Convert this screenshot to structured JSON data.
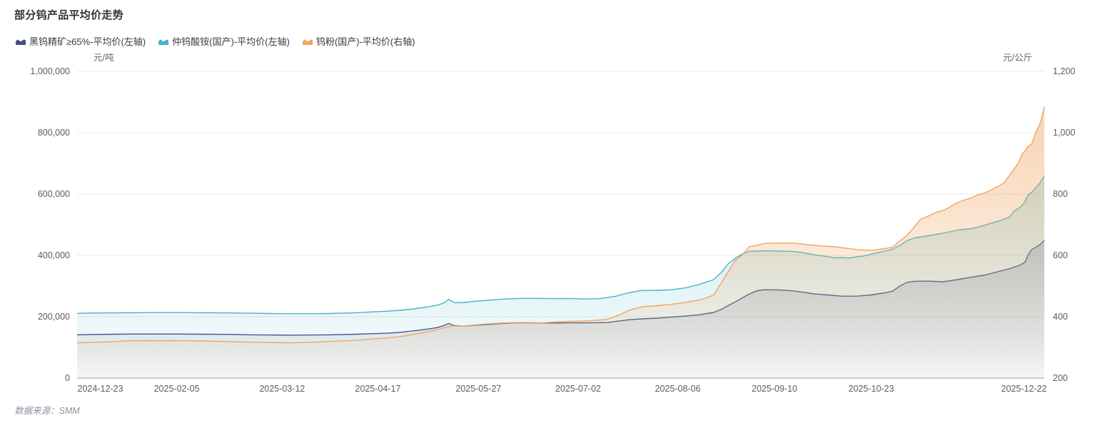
{
  "title": "部分钨产品平均价走势",
  "source": "数据来源：SMM",
  "axes": {
    "left": {
      "unit": "元/吨"
    },
    "right": {
      "unit": "元/公斤"
    }
  },
  "chart_data": {
    "type": "area",
    "title": "部分钨产品平均价走势",
    "grid": true,
    "legend_position": "top-left",
    "colors": {
      "background": "#ffffff",
      "gridline": "#e8e8e8",
      "axis_line": "#9b9b9b",
      "tick_text": "#5c5c5c"
    },
    "x_axis": {
      "note": "daily series from 2024-12-23 to 2025-12-22; point x stored as fraction of plot width",
      "tick_labels": [
        "2024-12-23",
        "2025-02-05",
        "2025-03-12",
        "2025-04-17",
        "2025-05-27",
        "2025-07-02",
        "2025-08-06",
        "2025-09-10",
        "2025-10-23",
        "2025-12-22"
      ],
      "tick_positions": [
        0.024,
        0.103,
        0.212,
        0.311,
        0.415,
        0.518,
        0.621,
        0.721,
        0.821,
        0.979
      ]
    },
    "y_left": {
      "label": "元/吨",
      "range": [
        0,
        1000000
      ],
      "ticks": [
        0,
        200000,
        400000,
        600000,
        800000,
        1000000
      ],
      "tick_labels": [
        "0",
        "200,000",
        "400,000",
        "600,000",
        "800,000",
        "1,000,000"
      ]
    },
    "y_right": {
      "label": "元/公斤",
      "range": [
        200,
        1200
      ],
      "ticks": [
        200,
        400,
        600,
        800,
        1000,
        1200
      ],
      "tick_labels": [
        "200",
        "400",
        "600",
        "800",
        "1,000",
        "1,200"
      ]
    },
    "series": [
      {
        "name": "黑钨精矿≥65%-平均价(左轴)",
        "axis": "left",
        "color": "#43517f",
        "fill_opacity_top": 0.26,
        "fill_opacity_bottom": 0.02,
        "points": [
          [
            0.0,
            141000
          ],
          [
            0.015,
            142000
          ],
          [
            0.04,
            143000
          ],
          [
            0.055,
            143500
          ],
          [
            0.08,
            143500
          ],
          [
            0.105,
            143500
          ],
          [
            0.13,
            143000
          ],
          [
            0.155,
            142500
          ],
          [
            0.18,
            141000
          ],
          [
            0.2,
            140500
          ],
          [
            0.22,
            140000
          ],
          [
            0.245,
            140500
          ],
          [
            0.26,
            141000
          ],
          [
            0.289,
            143000
          ],
          [
            0.319,
            146000
          ],
          [
            0.334,
            149000
          ],
          [
            0.348,
            154000
          ],
          [
            0.363,
            160000
          ],
          [
            0.373,
            165000
          ],
          [
            0.38,
            172000
          ],
          [
            0.384,
            178000
          ],
          [
            0.39,
            171000
          ],
          [
            0.4,
            169000
          ],
          [
            0.411,
            172000
          ],
          [
            0.422,
            174000
          ],
          [
            0.437,
            177500
          ],
          [
            0.452,
            180000
          ],
          [
            0.466,
            180500
          ],
          [
            0.48,
            179500
          ],
          [
            0.495,
            179500
          ],
          [
            0.51,
            180000
          ],
          [
            0.525,
            180000
          ],
          [
            0.548,
            181000
          ],
          [
            0.57,
            190000
          ],
          [
            0.584,
            193000
          ],
          [
            0.599,
            195000
          ],
          [
            0.614,
            198500
          ],
          [
            0.629,
            202000
          ],
          [
            0.644,
            206500
          ],
          [
            0.658,
            214000
          ],
          [
            0.666,
            224000
          ],
          [
            0.673,
            236000
          ],
          [
            0.681,
            249000
          ],
          [
            0.688,
            262000
          ],
          [
            0.695,
            274000
          ],
          [
            0.703,
            285000
          ],
          [
            0.711,
            288000
          ],
          [
            0.725,
            287500
          ],
          [
            0.74,
            284500
          ],
          [
            0.748,
            281000
          ],
          [
            0.762,
            274500
          ],
          [
            0.776,
            271000
          ],
          [
            0.791,
            267000
          ],
          [
            0.806,
            267000
          ],
          [
            0.821,
            271000
          ],
          [
            0.835,
            278000
          ],
          [
            0.843,
            283000
          ],
          [
            0.851,
            301000
          ],
          [
            0.858,
            312000
          ],
          [
            0.866,
            315500
          ],
          [
            0.88,
            316000
          ],
          [
            0.895,
            314000
          ],
          [
            0.902,
            317000
          ],
          [
            0.91,
            321000
          ],
          [
            0.924,
            328500
          ],
          [
            0.939,
            336000
          ],
          [
            0.954,
            348500
          ],
          [
            0.964,
            356500
          ],
          [
            0.969,
            362000
          ],
          [
            0.973,
            366000
          ],
          [
            0.977,
            372000
          ],
          [
            0.98,
            378000
          ],
          [
            0.983,
            400000
          ],
          [
            0.987,
            419000
          ],
          [
            0.991,
            426000
          ],
          [
            0.995,
            434000
          ],
          [
            1.0,
            449000
          ]
        ]
      },
      {
        "name": "仲钨酸铵(国产)-平均价(左轴)",
        "axis": "left",
        "color": "#47b5c7",
        "fill_opacity_top": 0.3,
        "fill_opacity_bottom": 0.03,
        "points": [
          [
            0.0,
            211000
          ],
          [
            0.015,
            212000
          ],
          [
            0.04,
            212500
          ],
          [
            0.055,
            213000
          ],
          [
            0.08,
            213500
          ],
          [
            0.105,
            213500
          ],
          [
            0.13,
            213000
          ],
          [
            0.155,
            212500
          ],
          [
            0.18,
            211500
          ],
          [
            0.2,
            210500
          ],
          [
            0.22,
            210000
          ],
          [
            0.245,
            210000
          ],
          [
            0.26,
            210500
          ],
          [
            0.289,
            213000
          ],
          [
            0.319,
            218000
          ],
          [
            0.334,
            221000
          ],
          [
            0.348,
            225500
          ],
          [
            0.363,
            232000
          ],
          [
            0.373,
            238000
          ],
          [
            0.38,
            246000
          ],
          [
            0.384,
            257000
          ],
          [
            0.39,
            245500
          ],
          [
            0.4,
            246500
          ],
          [
            0.411,
            250000
          ],
          [
            0.422,
            253000
          ],
          [
            0.437,
            256500
          ],
          [
            0.452,
            259000
          ],
          [
            0.466,
            260000
          ],
          [
            0.48,
            259500
          ],
          [
            0.495,
            259000
          ],
          [
            0.51,
            259500
          ],
          [
            0.525,
            257500
          ],
          [
            0.54,
            259000
          ],
          [
            0.556,
            266000
          ],
          [
            0.57,
            278000
          ],
          [
            0.584,
            285500
          ],
          [
            0.599,
            286000
          ],
          [
            0.614,
            288000
          ],
          [
            0.629,
            294000
          ],
          [
            0.644,
            306000
          ],
          [
            0.658,
            321000
          ],
          [
            0.666,
            344000
          ],
          [
            0.673,
            372000
          ],
          [
            0.681,
            392000
          ],
          [
            0.688,
            405000
          ],
          [
            0.695,
            413000
          ],
          [
            0.703,
            414500
          ],
          [
            0.711,
            415000
          ],
          [
            0.725,
            414500
          ],
          [
            0.74,
            412500
          ],
          [
            0.748,
            410000
          ],
          [
            0.762,
            402000
          ],
          [
            0.776,
            396000
          ],
          [
            0.784,
            392000
          ],
          [
            0.791,
            393000
          ],
          [
            0.798,
            391500
          ],
          [
            0.806,
            395000
          ],
          [
            0.813,
            398000
          ],
          [
            0.821,
            404000
          ],
          [
            0.835,
            414000
          ],
          [
            0.843,
            420000
          ],
          [
            0.851,
            433000
          ],
          [
            0.858,
            448000
          ],
          [
            0.866,
            457000
          ],
          [
            0.872,
            460000
          ],
          [
            0.88,
            464000
          ],
          [
            0.895,
            472000
          ],
          [
            0.91,
            482000
          ],
          [
            0.917,
            485000
          ],
          [
            0.924,
            487000
          ],
          [
            0.931,
            492000
          ],
          [
            0.939,
            499000
          ],
          [
            0.946,
            506000
          ],
          [
            0.954,
            513000
          ],
          [
            0.964,
            525000
          ],
          [
            0.969,
            545000
          ],
          [
            0.973,
            553000
          ],
          [
            0.977,
            562000
          ],
          [
            0.98,
            576000
          ],
          [
            0.983,
            596000
          ],
          [
            0.987,
            606000
          ],
          [
            0.991,
            620000
          ],
          [
            0.995,
            634000
          ],
          [
            1.0,
            660000
          ]
        ]
      },
      {
        "name": "钨粉(国产)-平均价(右轴)",
        "axis": "right",
        "color": "#f0a561",
        "fill_opacity_top": 0.48,
        "fill_opacity_bottom": 0.04,
        "points": [
          [
            0.0,
            315
          ],
          [
            0.015,
            316
          ],
          [
            0.04,
            319
          ],
          [
            0.055,
            322
          ],
          [
            0.08,
            322
          ],
          [
            0.105,
            322
          ],
          [
            0.13,
            321
          ],
          [
            0.155,
            319
          ],
          [
            0.18,
            317
          ],
          [
            0.2,
            316
          ],
          [
            0.22,
            315
          ],
          [
            0.245,
            317
          ],
          [
            0.26,
            319
          ],
          [
            0.289,
            323
          ],
          [
            0.319,
            331
          ],
          [
            0.334,
            335
          ],
          [
            0.348,
            343
          ],
          [
            0.363,
            351
          ],
          [
            0.37,
            356
          ],
          [
            0.378,
            362
          ],
          [
            0.384,
            368
          ],
          [
            0.39,
            370
          ],
          [
            0.4,
            369
          ],
          [
            0.411,
            373
          ],
          [
            0.422,
            376
          ],
          [
            0.437,
            379
          ],
          [
            0.452,
            381
          ],
          [
            0.466,
            381
          ],
          [
            0.48,
            380
          ],
          [
            0.495,
            383
          ],
          [
            0.51,
            385
          ],
          [
            0.525,
            386
          ],
          [
            0.548,
            391
          ],
          [
            0.562,
            408
          ],
          [
            0.57,
            420
          ],
          [
            0.584,
            432
          ],
          [
            0.599,
            436
          ],
          [
            0.614,
            440
          ],
          [
            0.629,
            447
          ],
          [
            0.644,
            455
          ],
          [
            0.658,
            470
          ],
          [
            0.666,
            510
          ],
          [
            0.673,
            546
          ],
          [
            0.681,
            585
          ],
          [
            0.688,
            602
          ],
          [
            0.695,
            628
          ],
          [
            0.703,
            633
          ],
          [
            0.711,
            639
          ],
          [
            0.725,
            640
          ],
          [
            0.74,
            640
          ],
          [
            0.755,
            635
          ],
          [
            0.769,
            631
          ],
          [
            0.784,
            628
          ],
          [
            0.791,
            625
          ],
          [
            0.806,
            619
          ],
          [
            0.821,
            616
          ],
          [
            0.835,
            622
          ],
          [
            0.843,
            627
          ],
          [
            0.851,
            648
          ],
          [
            0.858,
            665
          ],
          [
            0.866,
            694
          ],
          [
            0.872,
            718
          ],
          [
            0.88,
            728
          ],
          [
            0.887,
            739
          ],
          [
            0.895,
            746
          ],
          [
            0.902,
            757
          ],
          [
            0.91,
            772
          ],
          [
            0.917,
            780
          ],
          [
            0.924,
            787
          ],
          [
            0.931,
            797
          ],
          [
            0.939,
            804
          ],
          [
            0.946,
            815
          ],
          [
            0.954,
            828
          ],
          [
            0.959,
            838
          ],
          [
            0.964,
            861
          ],
          [
            0.969,
            882
          ],
          [
            0.973,
            900
          ],
          [
            0.977,
            930
          ],
          [
            0.98,
            941
          ],
          [
            0.983,
            955
          ],
          [
            0.987,
            963
          ],
          [
            0.991,
            1000
          ],
          [
            0.995,
            1025
          ],
          [
            0.997,
            1044
          ],
          [
            1.0,
            1085
          ]
        ]
      }
    ]
  }
}
